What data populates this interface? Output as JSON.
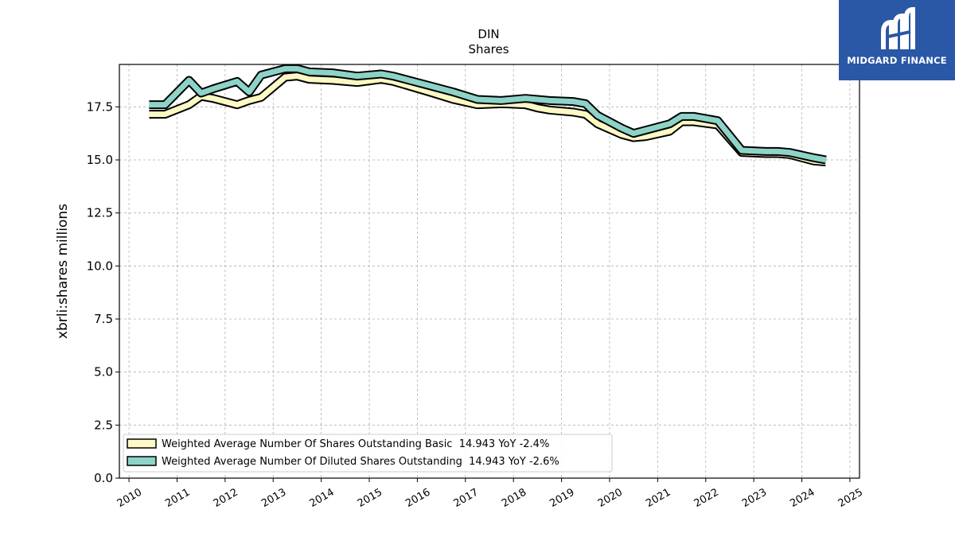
{
  "brand": {
    "name": "MIDGARD FINANCE",
    "color": "#2a57a6"
  },
  "chart_data": {
    "type": "line",
    "title": "DIN",
    "subtitle": "Shares",
    "xlabel": "",
    "ylabel": "xbrli:shares millions",
    "xlim": [
      2009.8,
      2025.2
    ],
    "ylim": [
      0,
      19.5
    ],
    "xticks": [
      "2010",
      "2011",
      "2012",
      "2013",
      "2014",
      "2015",
      "2016",
      "2017",
      "2018",
      "2019",
      "2020",
      "2021",
      "2022",
      "2023",
      "2024",
      "2025"
    ],
    "yticks": [
      "0.0",
      "2.5",
      "5.0",
      "7.5",
      "10.0",
      "12.5",
      "15.0",
      "17.5"
    ],
    "grid": true,
    "legend_position": "lower-left",
    "series": [
      {
        "name": "Weighted Average Number Of Shares Outstanding Basic  14.943 YoY -2.4%",
        "color": "#fdf9c4",
        "x": [
          2010.42,
          2010.75,
          2011.25,
          2011.5,
          2011.75,
          2012.25,
          2012.5,
          2012.75,
          2013.25,
          2013.5,
          2013.75,
          2014.25,
          2014.75,
          2015.25,
          2015.5,
          2016.25,
          2016.75,
          2017.25,
          2017.75,
          2018.25,
          2018.5,
          2018.75,
          2019.25,
          2019.5,
          2019.75,
          2020.25,
          2020.5,
          2020.75,
          2021.25,
          2021.5,
          2021.75,
          2022.25,
          2022.75,
          2023.25,
          2023.5,
          2023.75,
          2024.25,
          2024.5
        ],
        "values": [
          17.15,
          17.15,
          17.6,
          18.0,
          17.9,
          17.6,
          17.8,
          17.95,
          18.9,
          18.95,
          18.8,
          18.75,
          18.65,
          18.8,
          18.7,
          18.2,
          17.85,
          17.6,
          17.65,
          17.6,
          17.45,
          17.35,
          17.25,
          17.15,
          16.7,
          16.2,
          16.05,
          16.1,
          16.35,
          16.8,
          16.8,
          16.65,
          15.35,
          15.3,
          15.3,
          15.25,
          14.95,
          14.9
        ]
      },
      {
        "name": "Weighted Average Number Of Diluted Shares Outstanding  14.943 YoY -2.6%",
        "color": "#8dd3c7",
        "x": [
          2010.42,
          2010.75,
          2011.25,
          2011.5,
          2011.75,
          2012.25,
          2012.5,
          2012.75,
          2013.25,
          2013.5,
          2013.75,
          2014.25,
          2014.75,
          2015.25,
          2015.5,
          2016.25,
          2016.75,
          2017.25,
          2017.75,
          2018.25,
          2018.5,
          2018.75,
          2019.25,
          2019.5,
          2019.75,
          2020.25,
          2020.5,
          2020.75,
          2021.25,
          2021.5,
          2021.75,
          2022.25,
          2022.75,
          2023.25,
          2023.5,
          2023.75,
          2024.25,
          2024.5
        ],
        "values": [
          17.6,
          17.6,
          18.75,
          18.15,
          18.35,
          18.7,
          18.2,
          19.0,
          19.3,
          19.3,
          19.15,
          19.1,
          18.95,
          19.05,
          18.95,
          18.5,
          18.2,
          17.85,
          17.8,
          17.9,
          17.85,
          17.8,
          17.75,
          17.65,
          17.1,
          16.5,
          16.25,
          16.4,
          16.7,
          17.05,
          17.05,
          16.85,
          15.45,
          15.4,
          15.4,
          15.35,
          15.1,
          15.0
        ]
      }
    ]
  }
}
